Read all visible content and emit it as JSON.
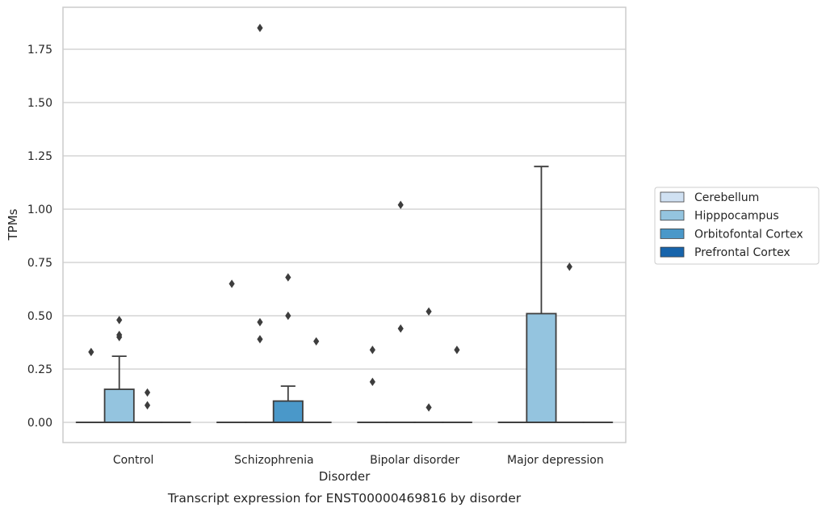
{
  "chart_data": {
    "type": "box",
    "caption": "Transcript expression for ENST00000469816 by disorder",
    "xlabel": "Disorder",
    "ylabel": "TPMs",
    "ylim": [
      -0.09,
      1.95
    ],
    "yticks": [
      0.0,
      0.25,
      0.5,
      0.75,
      1.0,
      1.25,
      1.5,
      1.75
    ],
    "ytick_labels": [
      "0.00",
      "0.25",
      "0.50",
      "0.75",
      "1.00",
      "1.25",
      "1.50",
      "1.75"
    ],
    "grid": true,
    "legend_position": "right",
    "categories": [
      "Control",
      "Schizophrenia",
      "Bipolar disorder",
      "Major depression"
    ],
    "series": [
      {
        "name": "Cerebellum",
        "color": "#d0e1f2",
        "boxes": [
          {
            "q1": 0,
            "median": 0,
            "q3": 0,
            "whislo": 0,
            "whishi": 0,
            "fliers": [
              0.33
            ]
          },
          {
            "q1": 0,
            "median": 0,
            "q3": 0,
            "whislo": 0,
            "whishi": 0,
            "fliers": [
              0.65
            ]
          },
          {
            "q1": 0,
            "median": 0,
            "q3": 0,
            "whislo": 0,
            "whishi": 0,
            "fliers": [
              0.34,
              0.19
            ]
          },
          {
            "q1": 0,
            "median": 0,
            "q3": 0,
            "whislo": 0,
            "whishi": 0,
            "fliers": []
          }
        ]
      },
      {
        "name": "Hipppocampus",
        "color": "#94c4df",
        "boxes": [
          {
            "q1": 0,
            "median": 0,
            "q3": 0.155,
            "whislo": 0,
            "whishi": 0.31,
            "fliers": [
              0.48,
              0.41,
              0.4
            ]
          },
          {
            "q1": 0,
            "median": 0,
            "q3": 0,
            "whislo": 0,
            "whishi": 0,
            "fliers": [
              1.85,
              0.47,
              0.39
            ]
          },
          {
            "q1": 0,
            "median": 0,
            "q3": 0,
            "whislo": 0,
            "whishi": 0,
            "fliers": [
              1.02,
              0.44
            ]
          },
          {
            "q1": 0,
            "median": 0,
            "q3": 0.51,
            "whislo": 0,
            "whishi": 1.2,
            "fliers": []
          }
        ]
      },
      {
        "name": "Orbitofontal Cortex",
        "color": "#4a98c9",
        "boxes": [
          {
            "q1": 0,
            "median": 0,
            "q3": 0,
            "whislo": 0,
            "whishi": 0,
            "fliers": [
              0.14,
              0.08
            ]
          },
          {
            "q1": 0,
            "median": 0,
            "q3": 0.1,
            "whislo": 0,
            "whishi": 0.17,
            "fliers": [
              0.68,
              0.5
            ]
          },
          {
            "q1": 0,
            "median": 0,
            "q3": 0,
            "whislo": 0,
            "whishi": 0,
            "fliers": [
              0.52,
              0.07
            ]
          },
          {
            "q1": 0,
            "median": 0,
            "q3": 0,
            "whislo": 0,
            "whishi": 0,
            "fliers": [
              0.73
            ]
          }
        ]
      },
      {
        "name": "Prefrontal Cortex",
        "color": "#1764ab",
        "boxes": [
          {
            "q1": 0,
            "median": 0,
            "q3": 0,
            "whislo": 0,
            "whishi": 0,
            "fliers": []
          },
          {
            "q1": 0,
            "median": 0,
            "q3": 0,
            "whislo": 0,
            "whishi": 0,
            "fliers": [
              0.38
            ]
          },
          {
            "q1": 0,
            "median": 0,
            "q3": 0,
            "whislo": 0,
            "whishi": 0,
            "fliers": [
              0.34
            ]
          },
          {
            "q1": 0,
            "median": 0,
            "q3": 0,
            "whislo": 0,
            "whishi": 0,
            "fliers": []
          }
        ]
      }
    ]
  }
}
